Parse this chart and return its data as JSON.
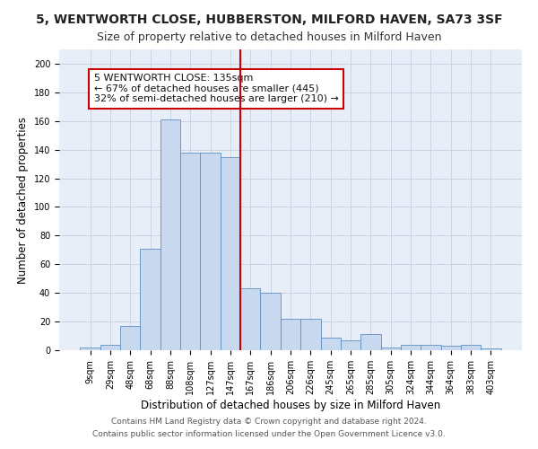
{
  "title": "5, WENTWORTH CLOSE, HUBBERSTON, MILFORD HAVEN, SA73 3SF",
  "subtitle": "Size of property relative to detached houses in Milford Haven",
  "xlabel": "Distribution of detached houses by size in Milford Haven",
  "ylabel": "Number of detached properties",
  "footer_line1": "Contains HM Land Registry data © Crown copyright and database right 2024.",
  "footer_line2": "Contains public sector information licensed under the Open Government Licence v3.0.",
  "bar_labels": [
    "9sqm",
    "29sqm",
    "48sqm",
    "68sqm",
    "88sqm",
    "108sqm",
    "127sqm",
    "147sqm",
    "167sqm",
    "186sqm",
    "206sqm",
    "226sqm",
    "245sqm",
    "265sqm",
    "285sqm",
    "305sqm",
    "324sqm",
    "344sqm",
    "364sqm",
    "383sqm",
    "403sqm"
  ],
  "bar_values": [
    2,
    4,
    17,
    71,
    161,
    138,
    138,
    135,
    43,
    40,
    22,
    22,
    9,
    7,
    11,
    2,
    4,
    4,
    3,
    4,
    1
  ],
  "bar_color": "#c8d8ee",
  "bar_edge_color": "#6090c0",
  "vline_x": 7.5,
  "vline_color": "#cc0000",
  "annotation_text": "5 WENTWORTH CLOSE: 135sqm\n← 67% of detached houses are smaller (445)\n32% of semi-detached houses are larger (210) →",
  "annotation_box_color": "#ffffff",
  "annotation_box_edge_color": "#cc0000",
  "ylim": [
    0,
    210
  ],
  "yticks": [
    0,
    20,
    40,
    60,
    80,
    100,
    120,
    140,
    160,
    180,
    200
  ],
  "grid_color": "#c8d4e8",
  "background_color": "#e8eef8",
  "title_fontsize": 10,
  "subtitle_fontsize": 9,
  "xlabel_fontsize": 8.5,
  "ylabel_fontsize": 8.5,
  "tick_fontsize": 7,
  "annotation_fontsize": 8,
  "footer_fontsize": 6.5
}
